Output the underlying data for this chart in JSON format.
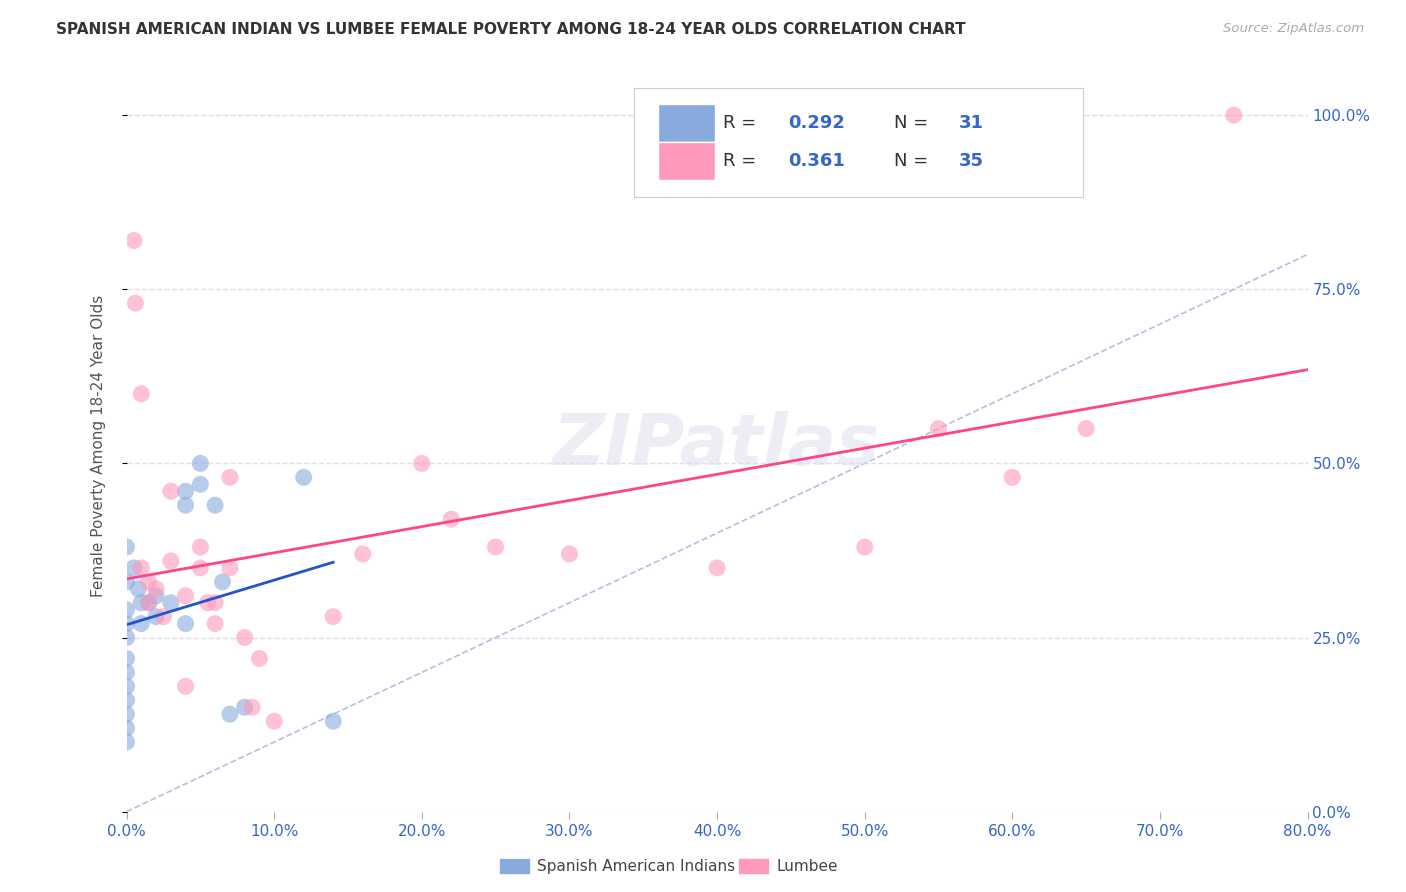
{
  "title": "SPANISH AMERICAN INDIAN VS LUMBEE FEMALE POVERTY AMONG 18-24 YEAR OLDS CORRELATION CHART",
  "source": "Source: ZipAtlas.com",
  "ylabel": "Female Poverty Among 18-24 Year Olds",
  "xlim": [
    0.0,
    0.8
  ],
  "ylim": [
    0.0,
    1.05
  ],
  "xticks": [
    0.0,
    0.1,
    0.2,
    0.3,
    0.4,
    0.5,
    0.6,
    0.7,
    0.8
  ],
  "yticks": [
    0.0,
    0.25,
    0.5,
    0.75,
    1.0
  ],
  "R_blue": 0.292,
  "N_blue": 31,
  "R_pink": 0.361,
  "N_pink": 35,
  "legend_labels": [
    "Spanish American Indians",
    "Lumbee"
  ],
  "color_blue": "#88AADD",
  "color_pink": "#FF99BB",
  "color_line_blue": "#2255CC",
  "color_line_pink": "#FF4488",
  "color_text_blue": "#3366CC",
  "diag_color": "#AABBDD",
  "scatter_blue_x": [
    0.0,
    0.0,
    0.0,
    0.0,
    0.0,
    0.0,
    0.0,
    0.0,
    0.0,
    0.0,
    0.0,
    0.0,
    0.005,
    0.008,
    0.01,
    0.01,
    0.015,
    0.02,
    0.02,
    0.03,
    0.04,
    0.04,
    0.04,
    0.05,
    0.05,
    0.06,
    0.065,
    0.07,
    0.08,
    0.12,
    0.14
  ],
  "scatter_blue_y": [
    0.38,
    0.33,
    0.29,
    0.27,
    0.25,
    0.22,
    0.2,
    0.18,
    0.16,
    0.14,
    0.12,
    0.1,
    0.35,
    0.32,
    0.3,
    0.27,
    0.3,
    0.31,
    0.28,
    0.3,
    0.46,
    0.44,
    0.27,
    0.5,
    0.47,
    0.44,
    0.33,
    0.14,
    0.15,
    0.48,
    0.13
  ],
  "scatter_pink_x": [
    0.005,
    0.006,
    0.01,
    0.01,
    0.015,
    0.015,
    0.02,
    0.025,
    0.03,
    0.03,
    0.04,
    0.04,
    0.05,
    0.05,
    0.055,
    0.06,
    0.06,
    0.07,
    0.07,
    0.08,
    0.085,
    0.09,
    0.1,
    0.14,
    0.16,
    0.2,
    0.22,
    0.25,
    0.3,
    0.4,
    0.5,
    0.55,
    0.6,
    0.65,
    0.75
  ],
  "scatter_pink_y": [
    0.82,
    0.73,
    0.6,
    0.35,
    0.33,
    0.3,
    0.32,
    0.28,
    0.46,
    0.36,
    0.31,
    0.18,
    0.38,
    0.35,
    0.3,
    0.3,
    0.27,
    0.48,
    0.35,
    0.25,
    0.15,
    0.22,
    0.13,
    0.28,
    0.37,
    0.5,
    0.42,
    0.38,
    0.37,
    0.35,
    0.38,
    0.55,
    0.48,
    0.55,
    1.0
  ],
  "bg_color": "#FFFFFF",
  "grid_color": "#DDDDEE",
  "axis_color": "#3366CC"
}
